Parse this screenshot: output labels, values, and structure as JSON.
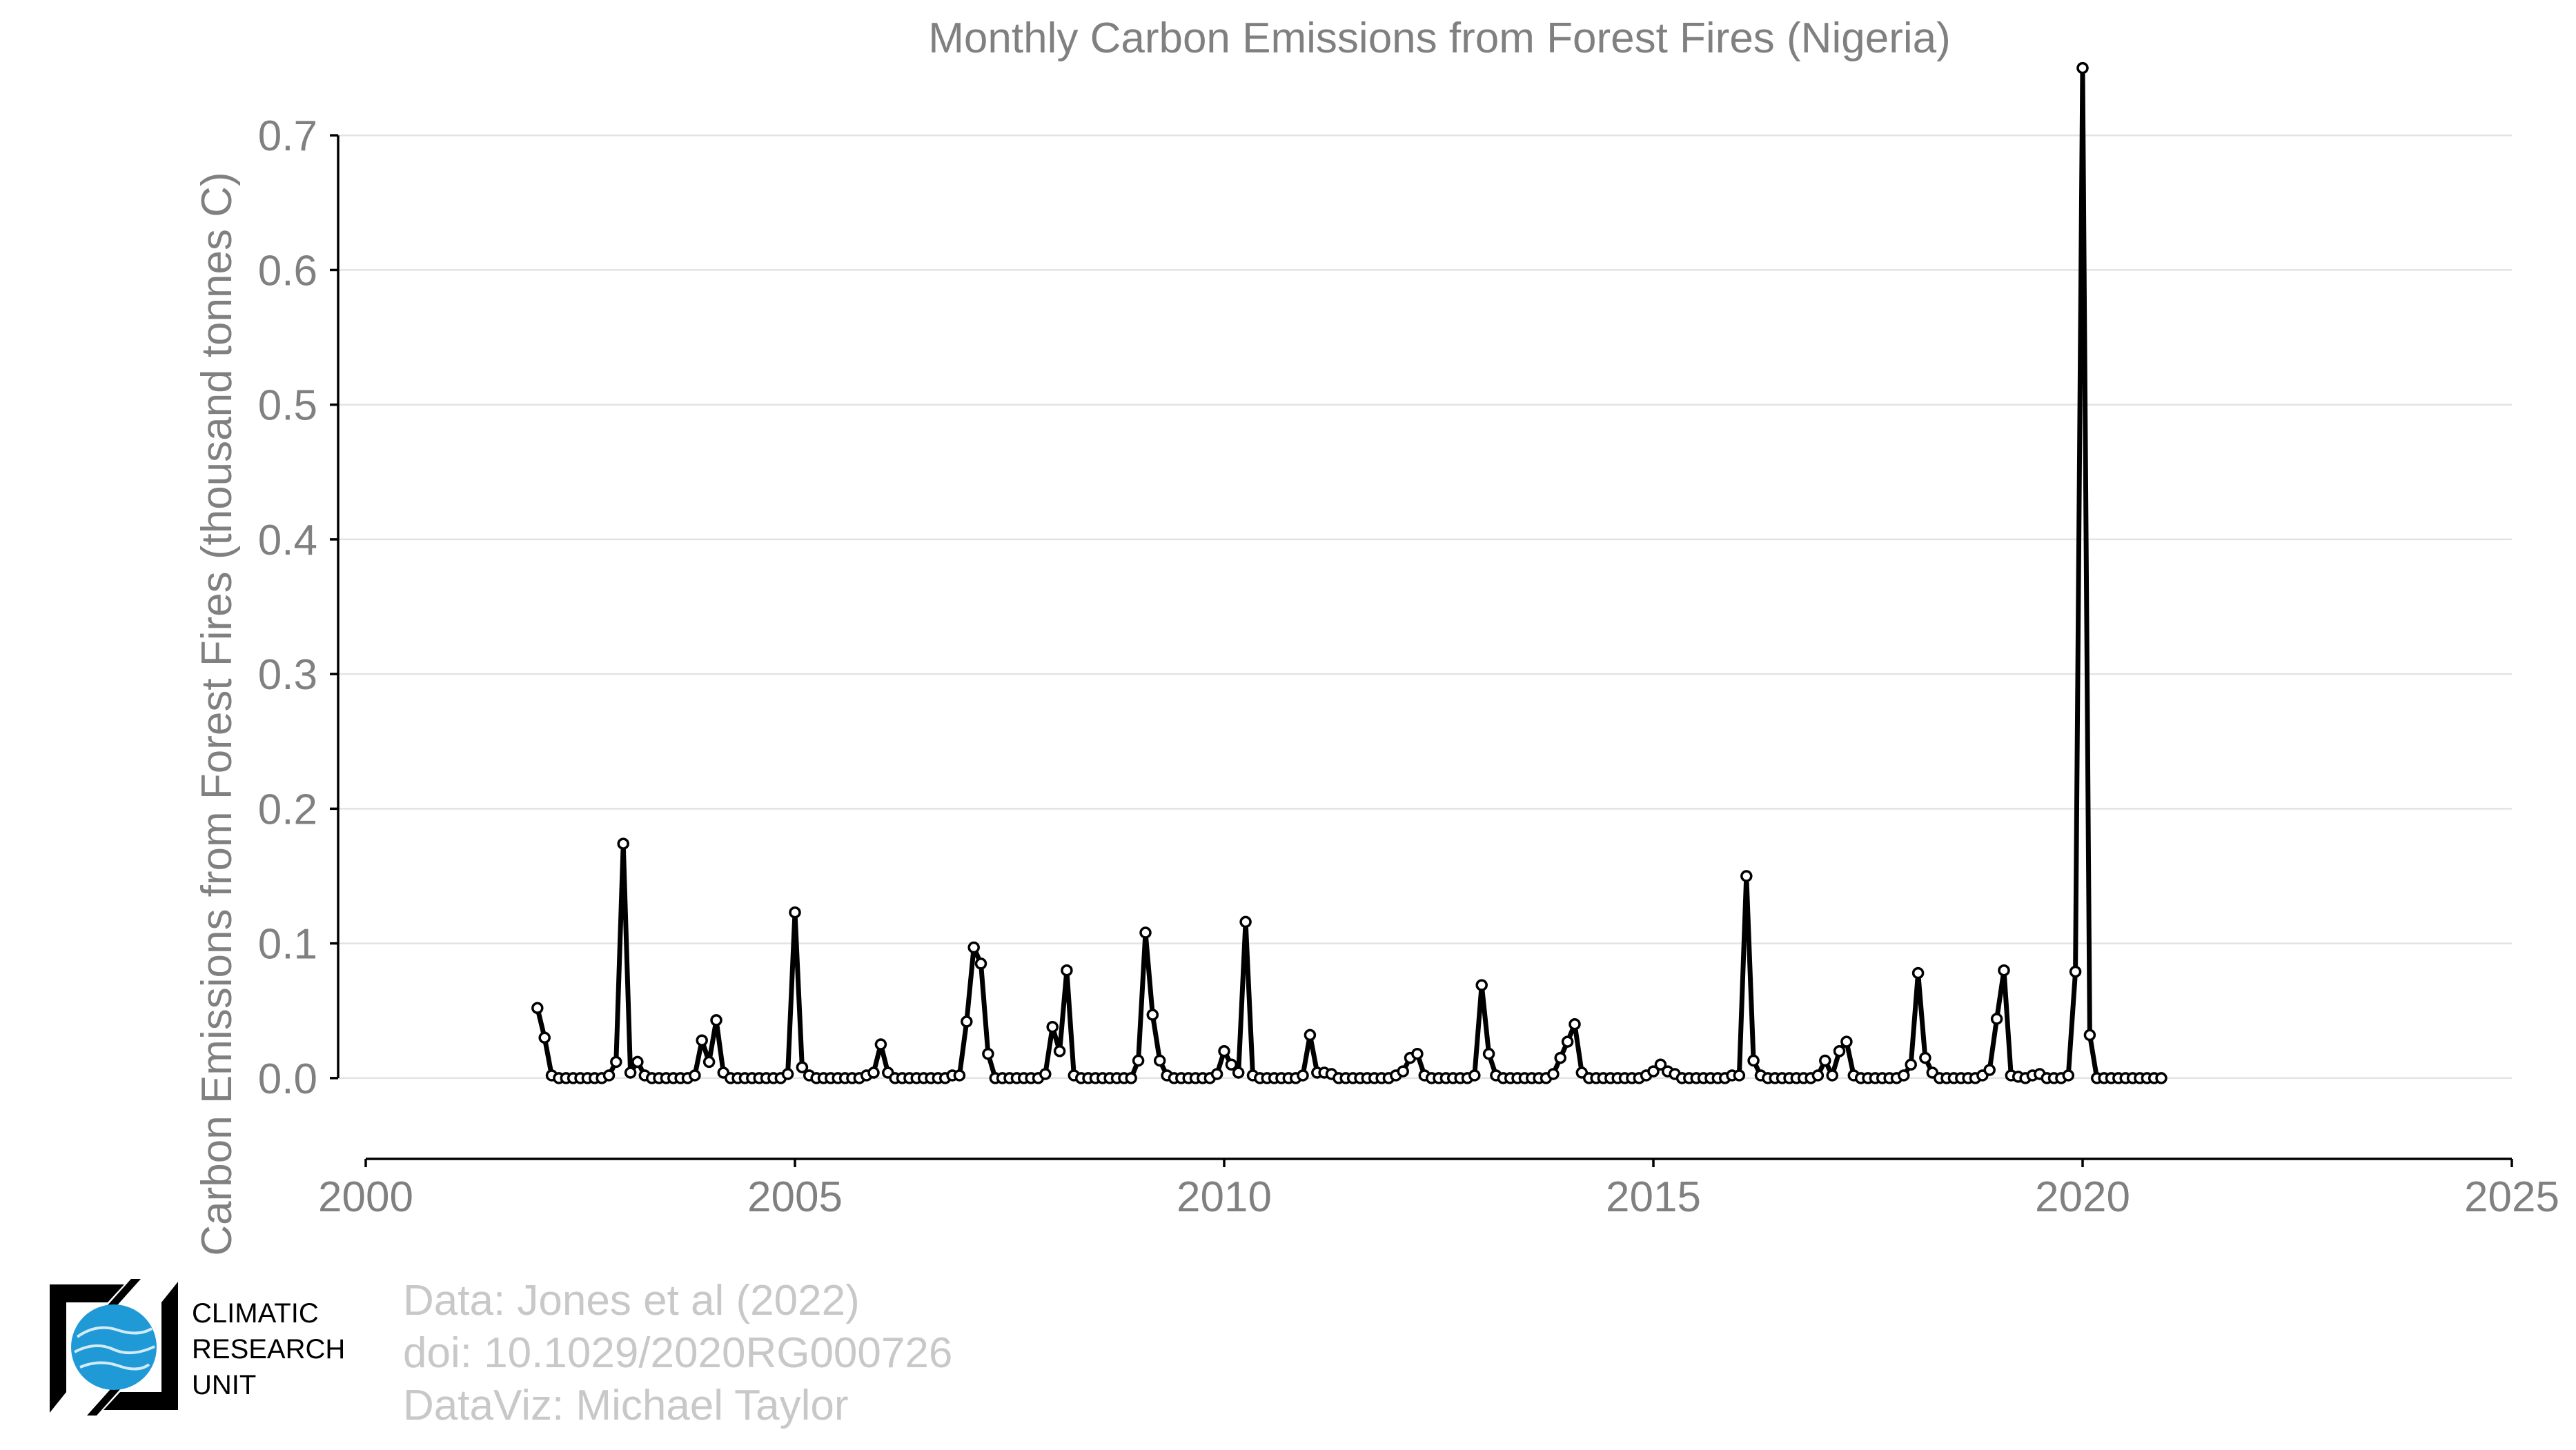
{
  "chart_data": {
    "type": "line",
    "title": "Monthly Carbon Emissions from Forest Fires (Nigeria)",
    "xlabel": "",
    "ylabel": "Carbon Emissions from Forest Fires (thousand tonnes C)",
    "xlim": [
      2000,
      2025
    ],
    "ylim": [
      -0.06,
      0.78
    ],
    "x_ticks": [
      "2000",
      "2005",
      "2010",
      "2015",
      "2020",
      "2025"
    ],
    "y_ticks": [
      "0.0",
      "0.1",
      "0.2",
      "0.3",
      "0.4",
      "0.5",
      "0.6",
      "0.7"
    ],
    "grid": "horizontal",
    "start": "2002-01",
    "frequency": "monthly",
    "series": [
      {
        "values": [
          0.052,
          0.03,
          0.002,
          0,
          0,
          0,
          0,
          0,
          0,
          0,
          0.002,
          0.012,
          0.174,
          0.004,
          0.012,
          0.002,
          0,
          0,
          0,
          0,
          0,
          0,
          0.002,
          0.028,
          0.012,
          0.043,
          0.004,
          0,
          0,
          0,
          0,
          0,
          0,
          0,
          0,
          0.003,
          0.123,
          0.008,
          0.002,
          0,
          0,
          0,
          0,
          0,
          0,
          0,
          0.002,
          0.004,
          0.025,
          0.004,
          0,
          0,
          0,
          0,
          0,
          0,
          0,
          0,
          0.002,
          0.002,
          0.042,
          0.097,
          0.085,
          0.018,
          0,
          0,
          0,
          0,
          0,
          0,
          0,
          0.003,
          0.038,
          0.02,
          0.08,
          0.002,
          0,
          0,
          0,
          0,
          0,
          0,
          0,
          0,
          0.013,
          0.108,
          0.047,
          0.013,
          0.002,
          0,
          0,
          0,
          0,
          0,
          0,
          0.003,
          0.02,
          0.01,
          0.004,
          0.116,
          0.002,
          0,
          0,
          0,
          0,
          0,
          0,
          0.002,
          0.032,
          0.004,
          0.004,
          0.003,
          0,
          0,
          0,
          0,
          0,
          0,
          0,
          0,
          0.002,
          0.005,
          0.015,
          0.018,
          0.002,
          0,
          0,
          0,
          0,
          0,
          0,
          0.002,
          0.069,
          0.018,
          0.002,
          0,
          0,
          0,
          0,
          0,
          0,
          0,
          0.003,
          0.015,
          0.027,
          0.04,
          0.004,
          0,
          0,
          0,
          0,
          0,
          0,
          0,
          0,
          0.002,
          0.005,
          0.01,
          0.005,
          0.003,
          0,
          0,
          0,
          0,
          0,
          0,
          0,
          0.002,
          0.002,
          0.15,
          0.013,
          0.002,
          0,
          0,
          0,
          0,
          0,
          0,
          0,
          0.002,
          0.013,
          0.002,
          0.02,
          0.027,
          0.002,
          0,
          0,
          0,
          0,
          0,
          0,
          0.002,
          0.01,
          0.078,
          0.015,
          0.004,
          0,
          0,
          0,
          0,
          0,
          0,
          0.002,
          0.006,
          0.044,
          0.08,
          0.002,
          0.001,
          0,
          0.002,
          0.003,
          0,
          0,
          0,
          0.002,
          0.079,
          0.75,
          0.032,
          0,
          0,
          0,
          0,
          0,
          0,
          0,
          0,
          0,
          0
        ]
      }
    ]
  },
  "credits": {
    "data": "Data: Jones et al (2022)",
    "doi": "doi: 10.1029/2020RG000726",
    "dataviz": "DataViz: Michael Taylor"
  },
  "logo": {
    "line1": "CLIMATIC",
    "line2": "RESEARCH",
    "line3": "UNIT",
    "globe_color": "#1f9ad6"
  }
}
